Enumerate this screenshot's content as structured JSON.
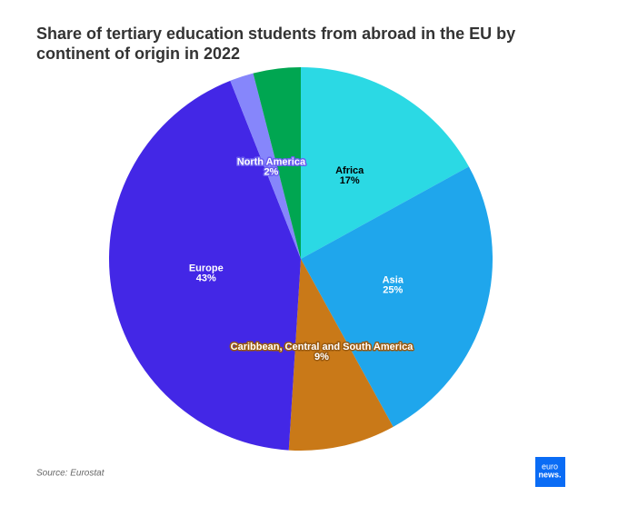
{
  "chart_data": {
    "type": "pie",
    "title": [
      "Share of tertiary education students from abroad in the EU by",
      "continent of origin in 2022"
    ],
    "categories": [
      "Africa",
      "Asia",
      "Caribbean, Central and South America",
      "Europe",
      "North America",
      null
    ],
    "values": [
      17,
      25,
      9,
      43,
      2,
      4
    ],
    "value_labels": [
      "17%",
      "25%",
      "9%",
      "43%",
      "2%",
      null
    ],
    "colors": [
      "#2bd9e4",
      "#1fa6ec",
      "#c97918",
      "#4327e6",
      "#8686fb",
      "#00a651"
    ],
    "label_colors": [
      "#000000",
      "#ffffff",
      "#ffffff",
      "#ffffff",
      "#ffffff",
      "#ffffff"
    ],
    "label_outlines": [
      null,
      null,
      "#9a5a10",
      null,
      "#6a5cf0",
      null
    ],
    "start_angle": 0,
    "direction": "clockwise",
    "source": "Source: Eurostat",
    "logo": [
      "euro",
      "news."
    ]
  }
}
